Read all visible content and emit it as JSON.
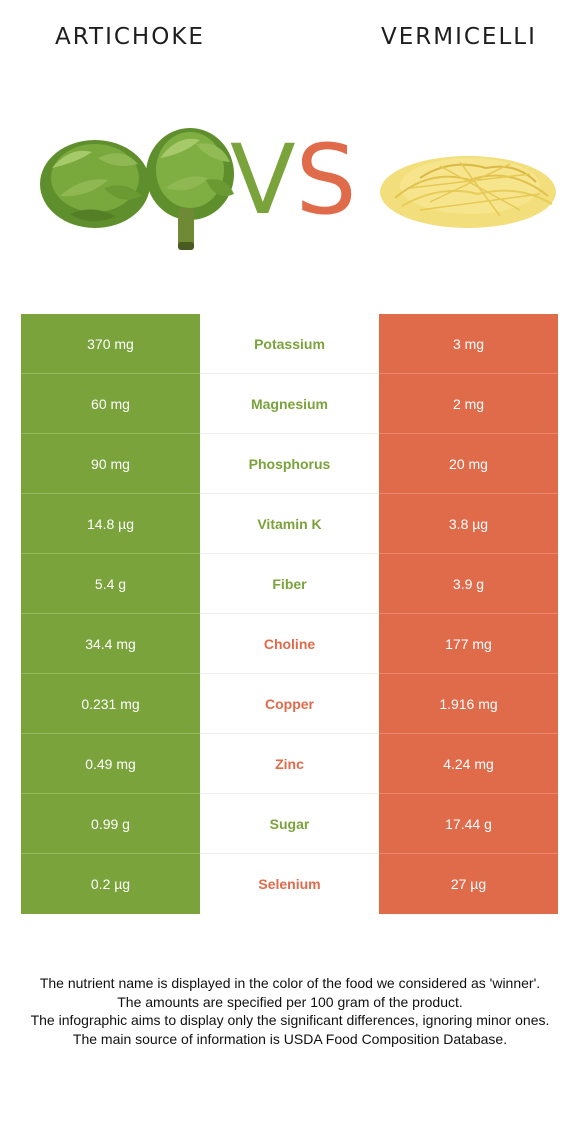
{
  "header": {
    "left_food": "ARTICHOKE",
    "right_food": "VERMICELLI"
  },
  "vs": {
    "v": "V",
    "s": "S"
  },
  "colors": {
    "left": "#7aa33b",
    "right": "#e06b4b"
  },
  "rows": [
    {
      "left": "370 mg",
      "nutrient": "Potassium",
      "right": "3 mg",
      "winner": "left"
    },
    {
      "left": "60 mg",
      "nutrient": "Magnesium",
      "right": "2 mg",
      "winner": "left"
    },
    {
      "left": "90 mg",
      "nutrient": "Phosphorus",
      "right": "20 mg",
      "winner": "left"
    },
    {
      "left": "14.8 µg",
      "nutrient": "Vitamin K",
      "right": "3.8 µg",
      "winner": "left"
    },
    {
      "left": "5.4 g",
      "nutrient": "Fiber",
      "right": "3.9 g",
      "winner": "left"
    },
    {
      "left": "34.4 mg",
      "nutrient": "Choline",
      "right": "177 mg",
      "winner": "right"
    },
    {
      "left": "0.231 mg",
      "nutrient": "Copper",
      "right": "1.916 mg",
      "winner": "right"
    },
    {
      "left": "0.49 mg",
      "nutrient": "Zinc",
      "right": "4.24 mg",
      "winner": "right"
    },
    {
      "left": "0.99 g",
      "nutrient": "Sugar",
      "right": "17.44 g",
      "winner": "left"
    },
    {
      "left": "0.2 µg",
      "nutrient": "Selenium",
      "right": "27 µg",
      "winner": "right"
    }
  ],
  "footer": {
    "line1": "The nutrient name is displayed in the color of the food we considered as 'winner'.",
    "line2": "The amounts are specified per 100 gram of the product.",
    "line3": "The infographic aims to display only the significant differences, ignoring minor ones.",
    "line4": "The main source of information is USDA Food Composition Database."
  }
}
